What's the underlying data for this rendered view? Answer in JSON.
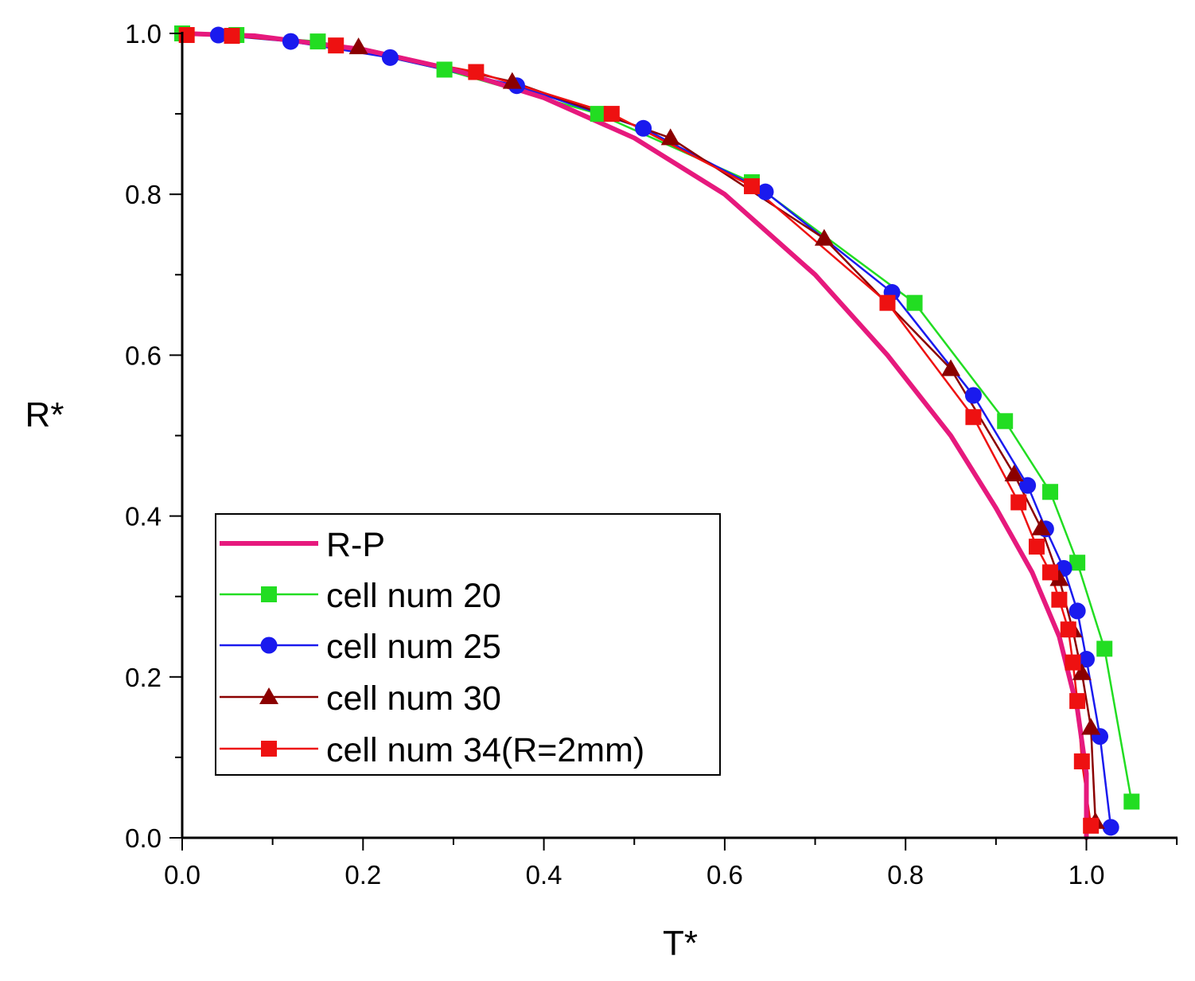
{
  "chart_data": {
    "type": "line",
    "xlabel": "T*",
    "ylabel": "R*",
    "xlim": [
      0.0,
      1.1
    ],
    "ylim": [
      0.0,
      1.0
    ],
    "xticks": [
      "0.0",
      "0.2",
      "0.4",
      "0.6",
      "0.8",
      "1.0"
    ],
    "xtick_values": [
      0.0,
      0.2,
      0.4,
      0.6,
      0.8,
      1.0
    ],
    "yticks": [
      "0.0",
      "0.2",
      "0.4",
      "0.6",
      "0.8",
      "1.0"
    ],
    "ytick_values": [
      0.0,
      0.2,
      0.4,
      0.6,
      0.8,
      1.0
    ],
    "legend_position": "lower-left",
    "series": [
      {
        "name": "R-P",
        "color": "#e6197d",
        "marker": "none",
        "x": [
          0.0,
          0.08,
          0.2,
          0.3,
          0.4,
          0.5,
          0.6,
          0.7,
          0.78,
          0.85,
          0.9,
          0.94,
          0.97,
          0.99,
          1.0,
          1.0
        ],
        "y": [
          1.0,
          0.997,
          0.98,
          0.955,
          0.92,
          0.87,
          0.8,
          0.7,
          0.6,
          0.5,
          0.41,
          0.33,
          0.25,
          0.16,
          0.08,
          0.0
        ]
      },
      {
        "name": "cell num 20",
        "color": "#22dd22",
        "marker": "square",
        "x": [
          0.0,
          0.06,
          0.15,
          0.29,
          0.46,
          0.63,
          0.81,
          0.91,
          0.96,
          0.99,
          1.02,
          1.05
        ],
        "y": [
          1.0,
          0.998,
          0.99,
          0.955,
          0.9,
          0.815,
          0.665,
          0.518,
          0.43,
          0.342,
          0.235,
          0.045
        ]
      },
      {
        "name": "cell num 25",
        "color": "#1a1aee",
        "marker": "circle",
        "x": [
          0.04,
          0.12,
          0.23,
          0.37,
          0.51,
          0.645,
          0.785,
          0.875,
          0.935,
          0.955,
          0.975,
          0.99,
          1.0,
          1.015,
          1.027
        ],
        "y": [
          0.998,
          0.99,
          0.97,
          0.935,
          0.882,
          0.803,
          0.678,
          0.55,
          0.438,
          0.384,
          0.335,
          0.282,
          0.222,
          0.126,
          0.013
        ]
      },
      {
        "name": "cell num 30",
        "color": "#8b0000",
        "marker": "triangle",
        "x": [
          0.195,
          0.365,
          0.54,
          0.71,
          0.85,
          0.92,
          0.95,
          0.97,
          0.985,
          0.995,
          1.005,
          1.01
        ],
        "y": [
          0.983,
          0.94,
          0.87,
          0.745,
          0.583,
          0.452,
          0.385,
          0.322,
          0.258,
          0.205,
          0.137,
          0.02
        ]
      },
      {
        "name": "cell num 34(R=2mm)",
        "color": "#ee1111",
        "marker": "square",
        "x": [
          0.005,
          0.055,
          0.17,
          0.325,
          0.475,
          0.63,
          0.78,
          0.875,
          0.925,
          0.945,
          0.96,
          0.97,
          0.98,
          0.985,
          0.99,
          0.995,
          1.005
        ],
        "y": [
          0.998,
          0.997,
          0.985,
          0.952,
          0.9,
          0.81,
          0.665,
          0.523,
          0.417,
          0.362,
          0.33,
          0.296,
          0.259,
          0.218,
          0.17,
          0.095,
          0.015
        ]
      }
    ]
  }
}
